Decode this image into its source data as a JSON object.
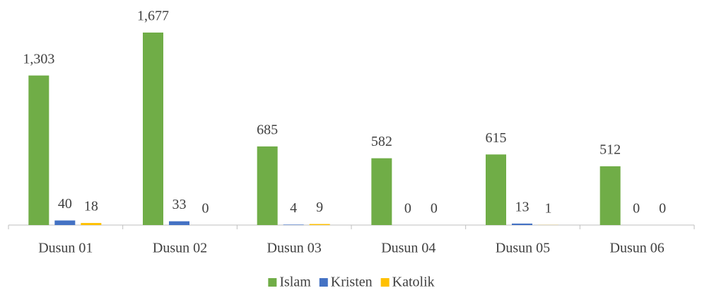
{
  "chart_data": {
    "type": "bar",
    "categories": [
      "Dusun 01",
      "Dusun 02",
      "Dusun 03",
      "Dusun 04",
      "Dusun 05",
      "Dusun 06"
    ],
    "series": [
      {
        "name": "Islam",
        "color": "#70ad47",
        "values": [
          1303,
          1677,
          685,
          582,
          615,
          512
        ],
        "value_labels": [
          "1,303",
          "1,677",
          "685",
          "582",
          "615",
          "512"
        ]
      },
      {
        "name": "Kristen",
        "color": "#4472c4",
        "values": [
          40,
          33,
          4,
          0,
          13,
          0
        ],
        "value_labels": [
          "40",
          "33",
          "4",
          "0",
          "13",
          "0"
        ]
      },
      {
        "name": "Katolik",
        "color": "#ffc000",
        "values": [
          18,
          0,
          9,
          0,
          1,
          0
        ],
        "value_labels": [
          "18",
          "0",
          "9",
          "0",
          "1",
          "0"
        ]
      }
    ],
    "legend": "bottom"
  }
}
